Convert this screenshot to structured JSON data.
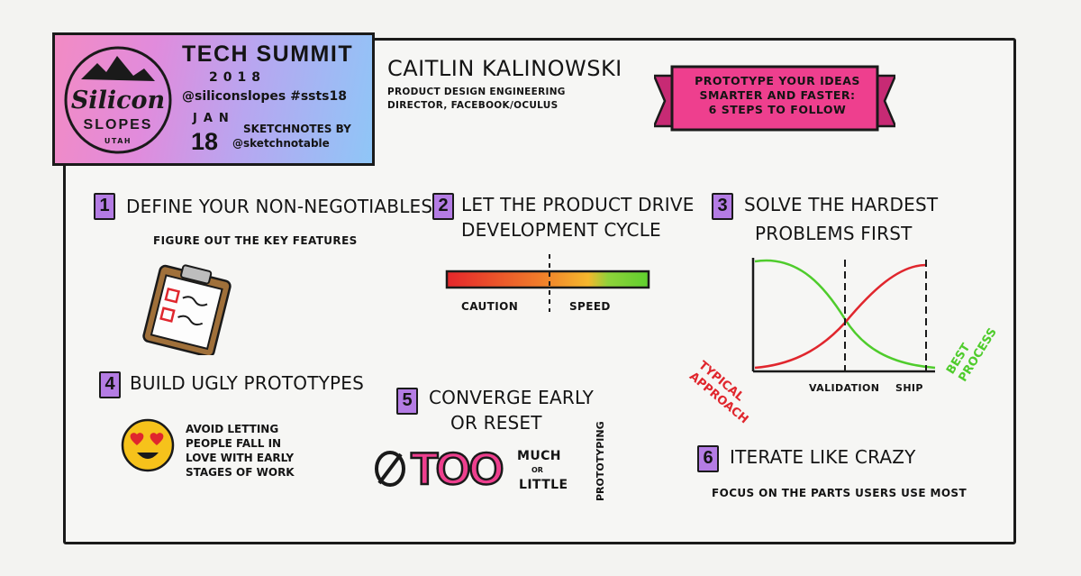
{
  "event": {
    "logo_word1": "Silicon",
    "logo_word2": "SLOPES",
    "logo_state": "UTAH",
    "title": "TECH SUMMIT",
    "year": "2018",
    "handles": "@siliconslopes #ssts18",
    "month": "JAN",
    "day": "18",
    "sketchnotes_by": "SKETCHNOTES BY",
    "sketchnotes_handle": "@sketchnotable"
  },
  "speaker": {
    "name": "CAITLIN KALINOWSKI",
    "role_line1": "PRODUCT DESIGN ENGINEERING",
    "role_line2": "DIRECTOR, FACEBOOK/OCULUS"
  },
  "talk": {
    "title_line1": "PROTOTYPE YOUR IDEAS",
    "title_line2": "SMARTER AND FASTER:",
    "title_line3": "6 STEPS TO FOLLOW",
    "ribbon_color": "#ee3f8e"
  },
  "steps": [
    {
      "number": "1",
      "title": "DEFINE YOUR NON-NEGOTIABLES",
      "note": "FIGURE OUT THE KEY FEATURES"
    },
    {
      "number": "2",
      "title_line1": "LET THE PRODUCT DRIVE",
      "title_line2": "DEVELOPMENT CYCLE",
      "left_label": "CAUTION",
      "right_label": "SPEED"
    },
    {
      "number": "3",
      "title_line1": "SOLVE THE HARDEST",
      "title_line2": "PROBLEMS FIRST",
      "label_validation": "VALIDATION",
      "label_ship": "SHIP",
      "label_typical_1": "TYPICAL",
      "label_typical_2": "APPROACH",
      "label_best_1": "BEST",
      "label_best_2": "PROCESS"
    },
    {
      "number": "4",
      "title": "BUILD UGLY PROTOTYPES",
      "note_line1": "AVOID LETTING",
      "note_line2": "PEOPLE FALL IN",
      "note_line3": "LOVE WITH EARLY",
      "note_line4": "STAGES OF WORK"
    },
    {
      "number": "5",
      "title_line1": "CONVERGE EARLY",
      "title_line2": "OR RESET",
      "big_word": "TOO",
      "much": "MUCH",
      "or": "OR",
      "little": "LITTLE",
      "vertical": "PROTOTYPING"
    },
    {
      "number": "6",
      "title": "ITERATE LIKE CRAZY",
      "note": "FOCUS ON THE PARTS USERS USE MOST"
    }
  ],
  "colors": {
    "accent_purple": "#b47ce4",
    "typical_red": "#e0262d",
    "best_green": "#4fcc2c"
  }
}
